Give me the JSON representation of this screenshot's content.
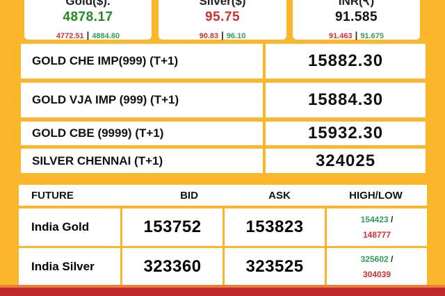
{
  "rates": [
    {
      "title": "Gold($).",
      "value": "4878.17",
      "low": "4772.51",
      "high": "4884.80",
      "value_color": "#1e8c1e"
    },
    {
      "title": "Silver($)",
      "value": "95.75",
      "low": "90.83",
      "high": "96.10",
      "value_color": "#d32f2f"
    },
    {
      "title": "INR(₹)",
      "value": "91.585",
      "low": "91.463",
      "high": "91.675",
      "value_color": "#111111"
    }
  ],
  "separator": "|",
  "spot": [
    {
      "name": "GOLD CHE IMP(999) (T+1)",
      "price": "15882.30"
    },
    {
      "name": "GOLD VJA IMP (999) (T+1)",
      "price": "15884.30"
    },
    {
      "name": "GOLD CBE (9999) (T+1)",
      "price": "15932.30"
    },
    {
      "name": "SILVER CHENNAI (T+1)",
      "price": "324025"
    }
  ],
  "futures": {
    "headers": [
      "FUTURE",
      "BID",
      "ASK",
      "HIGH/LOW"
    ],
    "rows": [
      {
        "name": "India Gold",
        "bid": "153752",
        "ask": "153823",
        "high": "154423",
        "low": "148777"
      },
      {
        "name": "India Silver",
        "bid": "323360",
        "ask": "323525",
        "high": "325602",
        "low": "304039"
      }
    ],
    "slash": "/"
  },
  "colors": {
    "background": "#fbb62b",
    "up": "#2e9e5e",
    "down": "#d32f2f",
    "footer": "#c0282a"
  }
}
